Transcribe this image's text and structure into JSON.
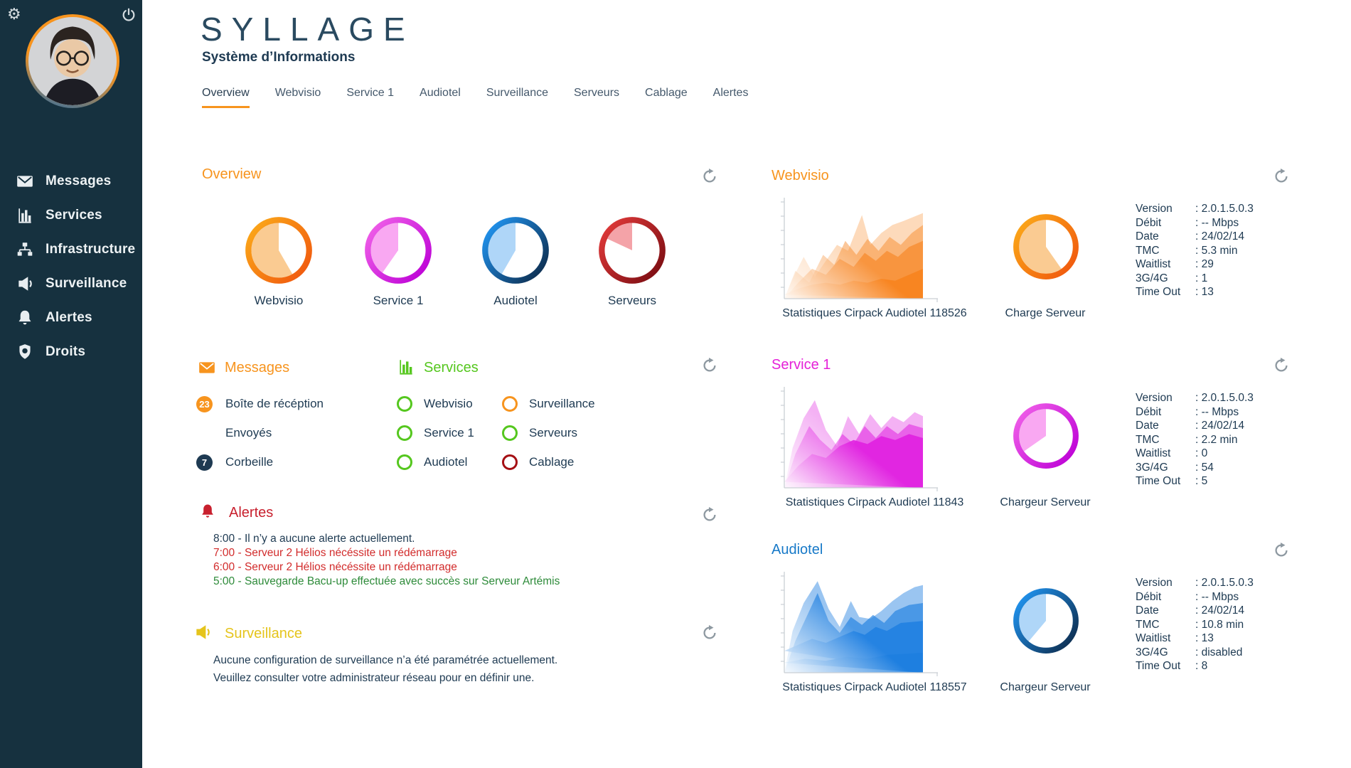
{
  "app": {
    "logo": "SYLLAGE",
    "subtitle": "Système d’Informations"
  },
  "colors": {
    "sidebar_bg": "#16313F",
    "navy": "#1E3A52",
    "orange": "#F7941E",
    "green": "#55C71E",
    "magenta": "#E520D8",
    "blue": "#1779C8",
    "red": "#C8202E",
    "yellow": "#E5C41C",
    "alert_red": "#D22C2C",
    "alert_green": "#2E8B3A",
    "axis_gray": "#C9CFD4",
    "refresh_gray": "#8E99A1"
  },
  "sidebar": {
    "items": [
      {
        "icon": "mail-icon",
        "label": "Messages"
      },
      {
        "icon": "bar-chart-icon",
        "label": "Services"
      },
      {
        "icon": "sitemap-icon",
        "label": "Infrastructure"
      },
      {
        "icon": "megaphone-icon",
        "label": "Surveillance"
      },
      {
        "icon": "bell-icon",
        "label": "Alertes"
      },
      {
        "icon": "shield-badge-icon",
        "label": "Droits"
      }
    ],
    "top_icons": [
      {
        "icon": "gear-icon"
      },
      {
        "icon": "power-icon"
      }
    ]
  },
  "tabs": [
    {
      "label": "Overview",
      "active": true
    },
    {
      "label": "Webvisio",
      "active": false
    },
    {
      "label": "Service 1",
      "active": false
    },
    {
      "label": "Audiotel",
      "active": false
    },
    {
      "label": "Surveillance",
      "active": false
    },
    {
      "label": "Serveurs",
      "active": false
    },
    {
      "label": "Cablage",
      "active": false
    },
    {
      "label": "Alertes",
      "active": false
    }
  ],
  "overview": {
    "title": "Overview",
    "pies": [
      {
        "label": "Webvisio",
        "ring_from": "#FBA919",
        "ring_to": "#F0570E",
        "fill": "#FACB92",
        "start": 150,
        "end": 360
      },
      {
        "label": "Service 1",
        "ring_from": "#F060E8",
        "ring_to": "#BC00D6",
        "fill": "#F9A8F2",
        "start": 215,
        "end": 360
      },
      {
        "label": "Audiotel",
        "ring_from": "#2196F3",
        "ring_to": "#0D2B4B",
        "fill": "#AFD6F8",
        "start": 210,
        "end": 360
      },
      {
        "label": "Serveurs",
        "ring_from": "#E13A3A",
        "ring_to": "#7A0D12",
        "fill": "#F4A3A8",
        "start": 295,
        "end": 360
      }
    ]
  },
  "messages": {
    "title": "Messages",
    "items": [
      {
        "badge": "23",
        "badge_color": "#F7941E",
        "label": "Boîte de récéption"
      },
      {
        "badge": "",
        "badge_color": "",
        "label": "Envoyés"
      },
      {
        "badge": "7",
        "badge_color": "#1E3A52",
        "label": "Corbeille"
      }
    ]
  },
  "services": {
    "title": "Services",
    "col1": [
      {
        "label": "Webvisio",
        "color": "#55C71E"
      },
      {
        "label": "Service 1",
        "color": "#55C71E"
      },
      {
        "label": "Audiotel",
        "color": "#55C71E"
      }
    ],
    "col2": [
      {
        "label": "Surveillance",
        "color": "#F7941E"
      },
      {
        "label": "Serveurs",
        "color": "#55C71E"
      },
      {
        "label": "Cablage",
        "color": "#A50F14"
      }
    ]
  },
  "alerts": {
    "title": "Alertes",
    "lines": [
      {
        "text": "8:00 - Il n’y a aucune alerte actuellement.",
        "color": "#1E3A52"
      },
      {
        "text": "7:00 - Serveur 2 Hélios nécéssite un rédémarrage",
        "color": "#D22C2C"
      },
      {
        "text": "6:00 - Serveur 2 Hélios nécéssite un rédémarrage",
        "color": "#D22C2C"
      },
      {
        "text": "5:00 - Sauvegarde Bacu-up effectuée avec succès sur Serveur Artémis",
        "color": "#2E8B3A"
      }
    ]
  },
  "surveillance": {
    "title": "Surveillance",
    "body": [
      "Aucune configuration de surveillance n’a été paramétrée actuellement.",
      "Veuillez consulter votre administrateur réseau pour en définir une."
    ]
  },
  "panels": [
    {
      "title": "Webvisio",
      "title_color": "#F7941E",
      "chart_caption": "Statistiques Cirpack Audiotel 118526",
      "pie_caption": "Charge Serveur",
      "stats": [
        {
          "label": "Version",
          "value": "2.0.1.5.0.3"
        },
        {
          "label": "Débit",
          "value": "-- Mbps"
        },
        {
          "label": "Date",
          "value": "24/02/14"
        },
        {
          "label": "TMC",
          "value": "5.3 min"
        },
        {
          "label": "Waitlist",
          "value": "29"
        },
        {
          "label": "3G/4G",
          "value": "1"
        },
        {
          "label": "Time Out",
          "value": "13"
        }
      ],
      "pie": {
        "ring_from": "#FBA919",
        "ring_to": "#F0570E",
        "fill": "#FACB92",
        "start": 145,
        "end": 360
      },
      "chart": {
        "type": "area",
        "color": "#F7831E",
        "x_range": [
          0,
          100
        ],
        "y_range": [
          0,
          100
        ],
        "grid": false,
        "layers": [
          {
            "opacity": 0.3,
            "points": [
              [
                0,
                100
              ],
              [
                6,
                80
              ],
              [
                14,
                58
              ],
              [
                22,
                78
              ],
              [
                30,
                62
              ],
              [
                38,
                46
              ],
              [
                46,
                52
              ],
              [
                56,
                16
              ],
              [
                62,
                46
              ],
              [
                70,
                34
              ],
              [
                78,
                26
              ],
              [
                86,
                22
              ],
              [
                100,
                14
              ],
              [
                100,
                100
              ]
            ]
          },
          {
            "opacity": 0.45,
            "points": [
              [
                0,
                100
              ],
              [
                8,
                72
              ],
              [
                18,
                84
              ],
              [
                28,
                56
              ],
              [
                36,
                66
              ],
              [
                44,
                42
              ],
              [
                52,
                56
              ],
              [
                60,
                40
              ],
              [
                68,
                52
              ],
              [
                76,
                38
              ],
              [
                84,
                46
              ],
              [
                92,
                34
              ],
              [
                100,
                26
              ],
              [
                100,
                100
              ]
            ]
          },
          {
            "opacity": 0.62,
            "points": [
              [
                0,
                100
              ],
              [
                10,
                84
              ],
              [
                20,
                70
              ],
              [
                30,
                76
              ],
              [
                40,
                60
              ],
              [
                50,
                68
              ],
              [
                58,
                54
              ],
              [
                66,
                62
              ],
              [
                74,
                52
              ],
              [
                82,
                58
              ],
              [
                90,
                48
              ],
              [
                100,
                42
              ],
              [
                100,
                100
              ]
            ]
          },
          {
            "opacity": 0.88,
            "points": [
              [
                0,
                96
              ],
              [
                10,
                90
              ],
              [
                20,
                86
              ],
              [
                30,
                84
              ],
              [
                40,
                86
              ],
              [
                50,
                82
              ],
              [
                60,
                84
              ],
              [
                70,
                80
              ],
              [
                80,
                82
              ],
              [
                90,
                76
              ],
              [
                100,
                70
              ],
              [
                100,
                100
              ]
            ]
          }
        ]
      }
    },
    {
      "title": "Service 1",
      "title_color": "#E520D8",
      "chart_caption": "Statistiques Cirpack Audiotel 11843",
      "pie_caption": "Chargeur Serveur",
      "stats": [
        {
          "label": "Version",
          "value": "2.0.1.5.0.3"
        },
        {
          "label": "Débit",
          "value": "-- Mbps"
        },
        {
          "label": "Date",
          "value": "24/02/14"
        },
        {
          "label": "TMC",
          "value": "2.2 min"
        },
        {
          "label": "Waitlist",
          "value": "0"
        },
        {
          "label": "3G/4G",
          "value": "54"
        },
        {
          "label": "Time Out",
          "value": "5"
        }
      ],
      "pie": {
        "ring_from": "#F060E8",
        "ring_to": "#BC00D6",
        "fill": "#F9A8F2",
        "start": 235,
        "end": 360
      },
      "chart": {
        "type": "area",
        "color": "#E020E0",
        "x_range": [
          0,
          100
        ],
        "y_range": [
          0,
          100
        ],
        "grid": false,
        "layers": [
          {
            "opacity": 0.35,
            "points": [
              [
                0,
                100
              ],
              [
                6,
                60
              ],
              [
                14,
                30
              ],
              [
                22,
                12
              ],
              [
                30,
                42
              ],
              [
                38,
                58
              ],
              [
                46,
                28
              ],
              [
                54,
                46
              ],
              [
                62,
                26
              ],
              [
                70,
                40
              ],
              [
                78,
                28
              ],
              [
                86,
                34
              ],
              [
                94,
                24
              ],
              [
                100,
                28
              ],
              [
                100,
                100
              ]
            ]
          },
          {
            "opacity": 0.55,
            "points": [
              [
                0,
                100
              ],
              [
                8,
                66
              ],
              [
                18,
                38
              ],
              [
                26,
                52
              ],
              [
                34,
                62
              ],
              [
                42,
                46
              ],
              [
                50,
                56
              ],
              [
                58,
                38
              ],
              [
                66,
                50
              ],
              [
                74,
                38
              ],
              [
                82,
                46
              ],
              [
                90,
                36
              ],
              [
                100,
                40
              ],
              [
                100,
                100
              ]
            ]
          },
          {
            "opacity": 0.9,
            "points": [
              [
                0,
                94
              ],
              [
                10,
                78
              ],
              [
                20,
                66
              ],
              [
                30,
                70
              ],
              [
                40,
                58
              ],
              [
                50,
                52
              ],
              [
                60,
                56
              ],
              [
                70,
                48
              ],
              [
                80,
                52
              ],
              [
                90,
                46
              ],
              [
                100,
                50
              ],
              [
                100,
                100
              ]
            ]
          }
        ]
      }
    },
    {
      "title": "Audiotel",
      "title_color": "#1779C8",
      "chart_caption": "Statistiques Cirpack Audiotel 118557",
      "pie_caption": "Chargeur Serveur",
      "stats": [
        {
          "label": "Version",
          "value": "2.0.1.5.0.3"
        },
        {
          "label": "Débit",
          "value": "-- Mbps"
        },
        {
          "label": "Date",
          "value": "24/02/14"
        },
        {
          "label": "TMC",
          "value": "10.8 min"
        },
        {
          "label": "Waitlist",
          "value": "13"
        },
        {
          "label": "3G/4G",
          "value": "disabled"
        },
        {
          "label": "Time Out",
          "value": "8"
        }
      ],
      "pie": {
        "ring_from": "#2196F3",
        "ring_to": "#0D2B4B",
        "fill": "#AFD6F8",
        "start": 220,
        "end": 360
      },
      "chart": {
        "type": "area",
        "color": "#1E7FE0",
        "x_range": [
          0,
          100
        ],
        "y_range": [
          0,
          100
        ],
        "grid": false,
        "layers": [
          {
            "opacity": 0.45,
            "points": [
              [
                0,
                100
              ],
              [
                6,
                58
              ],
              [
                14,
                30
              ],
              [
                24,
                8
              ],
              [
                32,
                36
              ],
              [
                40,
                54
              ],
              [
                48,
                28
              ],
              [
                54,
                44
              ],
              [
                62,
                46
              ],
              [
                70,
                38
              ],
              [
                78,
                28
              ],
              [
                86,
                20
              ],
              [
                94,
                14
              ],
              [
                100,
                12
              ],
              [
                100,
                100
              ]
            ]
          },
          {
            "opacity": 0.65,
            "points": [
              [
                0,
                100
              ],
              [
                8,
                68
              ],
              [
                16,
                44
              ],
              [
                24,
                20
              ],
              [
                32,
                48
              ],
              [
                40,
                60
              ],
              [
                48,
                44
              ],
              [
                56,
                52
              ],
              [
                64,
                42
              ],
              [
                72,
                50
              ],
              [
                80,
                38
              ],
              [
                90,
                32
              ],
              [
                100,
                30
              ],
              [
                100,
                100
              ]
            ]
          },
          {
            "opacity": 0.85,
            "points": [
              [
                0,
                78
              ],
              [
                10,
                72
              ],
              [
                20,
                66
              ],
              [
                30,
                70
              ],
              [
                40,
                64
              ],
              [
                50,
                58
              ],
              [
                58,
                62
              ],
              [
                66,
                54
              ],
              [
                74,
                58
              ],
              [
                84,
                50
              ],
              [
                100,
                48
              ],
              [
                100,
                100
              ]
            ]
          },
          {
            "opacity": 1.0,
            "points": [
              [
                0,
                90
              ],
              [
                15,
                86
              ],
              [
                30,
                88
              ],
              [
                45,
                84
              ],
              [
                60,
                86
              ],
              [
                75,
                82
              ],
              [
                100,
                80
              ],
              [
                100,
                100
              ]
            ]
          }
        ]
      }
    }
  ]
}
